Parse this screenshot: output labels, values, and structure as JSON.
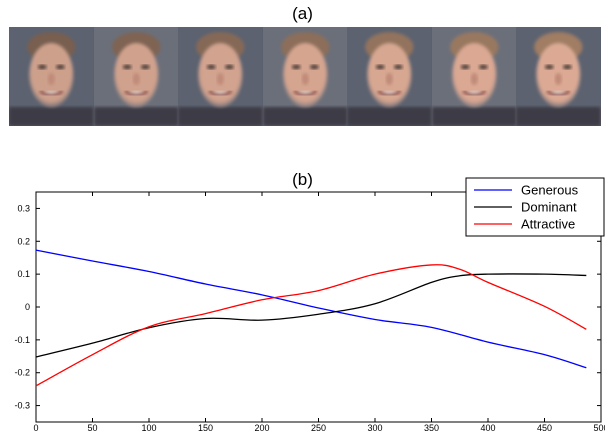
{
  "panel_a_label": "(a)",
  "panel_b_label": "(b)",
  "faces": {
    "count": 7,
    "description_icon": "averaged-face-icon"
  },
  "chart_data": {
    "type": "line",
    "title": "(b)",
    "xlabel": "",
    "ylabel": "",
    "xlim": [
      0,
      500
    ],
    "ylim": [
      -0.35,
      0.35
    ],
    "xticks": [
      0,
      50,
      100,
      150,
      200,
      250,
      300,
      350,
      400,
      450,
      500
    ],
    "yticks": [
      -0.3,
      -0.2,
      -0.1,
      0,
      0.1,
      0.2,
      0.3
    ],
    "ytick_labels": [
      "-0.3",
      "-0.2",
      "-0.1",
      "0",
      "0.1",
      "0.2",
      "0.3"
    ],
    "legend_position": "top-right",
    "grid": false,
    "series": [
      {
        "name": "Generous",
        "color": "#0000ff",
        "x": [
          0,
          50,
          100,
          150,
          200,
          250,
          300,
          350,
          400,
          450,
          487
        ],
        "y": [
          0.173,
          0.14,
          0.108,
          0.07,
          0.037,
          -0.003,
          -0.038,
          -0.062,
          -0.107,
          -0.145,
          -0.185
        ]
      },
      {
        "name": "Dominant",
        "color": "#000000",
        "x": [
          0,
          50,
          100,
          150,
          200,
          250,
          300,
          350,
          375,
          400,
          450,
          487
        ],
        "y": [
          -0.152,
          -0.11,
          -0.063,
          -0.035,
          -0.04,
          -0.022,
          0.01,
          0.075,
          0.095,
          0.1,
          0.1,
          0.096
        ]
      },
      {
        "name": "Attractive",
        "color": "#ff0000",
        "x": [
          0,
          50,
          100,
          150,
          200,
          250,
          300,
          350,
          375,
          400,
          450,
          487
        ],
        "y": [
          -0.24,
          -0.145,
          -0.06,
          -0.02,
          0.022,
          0.05,
          0.1,
          0.128,
          0.115,
          0.075,
          0.002,
          -0.068
        ]
      }
    ]
  }
}
